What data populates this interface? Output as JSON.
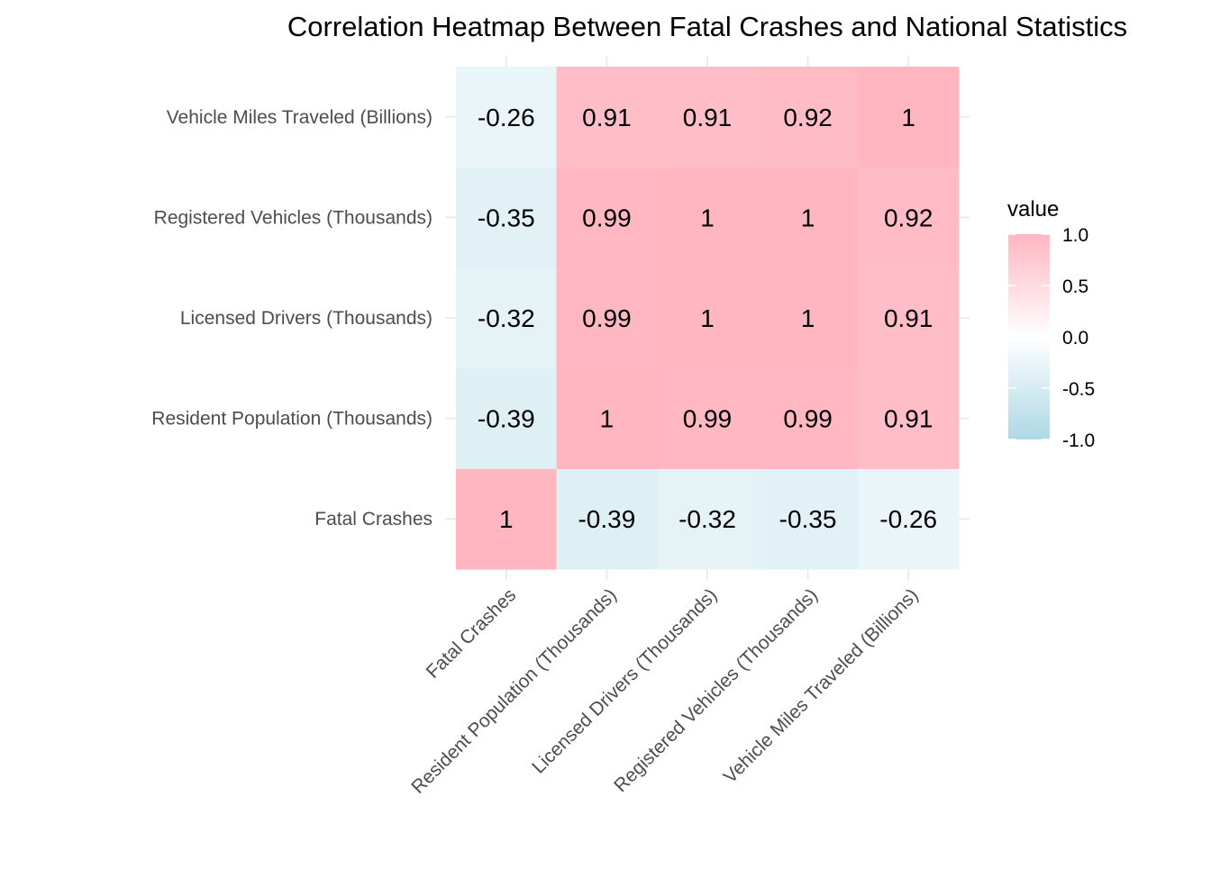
{
  "chart_data": {
    "type": "heatmap",
    "title": "Correlation Heatmap Between Fatal Crashes and National Statistics",
    "xlabel": "",
    "ylabel": "",
    "categories": [
      "Fatal Crashes",
      "Resident Population (Thousands)",
      "Licensed Drivers (Thousands)",
      "Registered Vehicles (Thousands)",
      "Vehicle Miles Traveled (Billions)"
    ],
    "matrix": [
      [
        1,
        -0.39,
        -0.32,
        -0.35,
        -0.26
      ],
      [
        -0.39,
        1,
        0.99,
        0.99,
        0.91
      ],
      [
        -0.32,
        0.99,
        1,
        1,
        0.91
      ],
      [
        -0.35,
        0.99,
        1,
        1,
        0.92
      ],
      [
        -0.26,
        0.91,
        0.91,
        0.92,
        1
      ]
    ],
    "cell_labels": [
      [
        "1",
        "-0.39",
        "-0.32",
        "-0.35",
        "-0.26"
      ],
      [
        "-0.39",
        "1",
        "0.99",
        "0.99",
        "0.91"
      ],
      [
        "-0.32",
        "0.99",
        "1",
        "1",
        "0.91"
      ],
      [
        "-0.35",
        "0.99",
        "1",
        "1",
        "0.92"
      ],
      [
        "-0.26",
        "0.91",
        "0.91",
        "0.92",
        "1"
      ]
    ],
    "legend": {
      "title": "value",
      "ticks": [
        "1.0",
        "0.5",
        "0.0",
        "-0.5",
        "-1.0"
      ],
      "tick_values": [
        1,
        0.5,
        0,
        -0.5,
        -1
      ],
      "placement": "right",
      "low_color": "#add8e6",
      "mid_color": "#ffffff",
      "high_color": "#ffb6c1"
    },
    "range": [
      -1,
      1
    ],
    "grid": true,
    "gridline_color": "#ebebeb",
    "text_color": "#000000",
    "axis_text_color": "#4d4d4d"
  }
}
